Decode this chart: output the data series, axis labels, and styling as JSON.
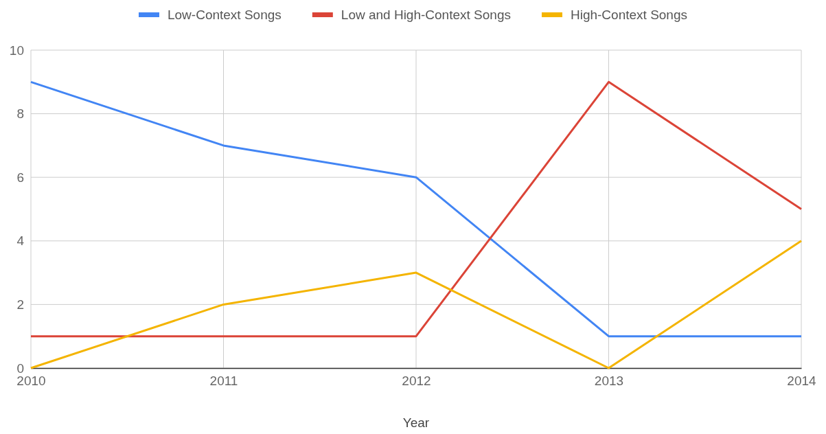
{
  "chart_data": {
    "type": "line",
    "xlabel": "Year",
    "x": [
      2010,
      2011,
      2012,
      2013,
      2014
    ],
    "series": [
      {
        "name": "Low-Context Songs",
        "color": "#4285f4",
        "values": [
          9,
          7,
          6,
          1,
          1
        ]
      },
      {
        "name": "Low and High-Context Songs",
        "color": "#db4437",
        "values": [
          1,
          1,
          1,
          9,
          5
        ]
      },
      {
        "name": "High-Context Songs",
        "color": "#f4b400",
        "values": [
          0,
          2,
          3,
          0,
          4
        ]
      }
    ],
    "xlim": [
      2010,
      2014
    ],
    "xticks": [
      2010,
      2011,
      2012,
      2013,
      2014
    ],
    "ylim": [
      0,
      10
    ],
    "yticks": [
      0,
      2,
      4,
      6,
      8,
      10
    ],
    "grid": true,
    "legend": "top",
    "marker": "none",
    "line_style": "solid"
  }
}
